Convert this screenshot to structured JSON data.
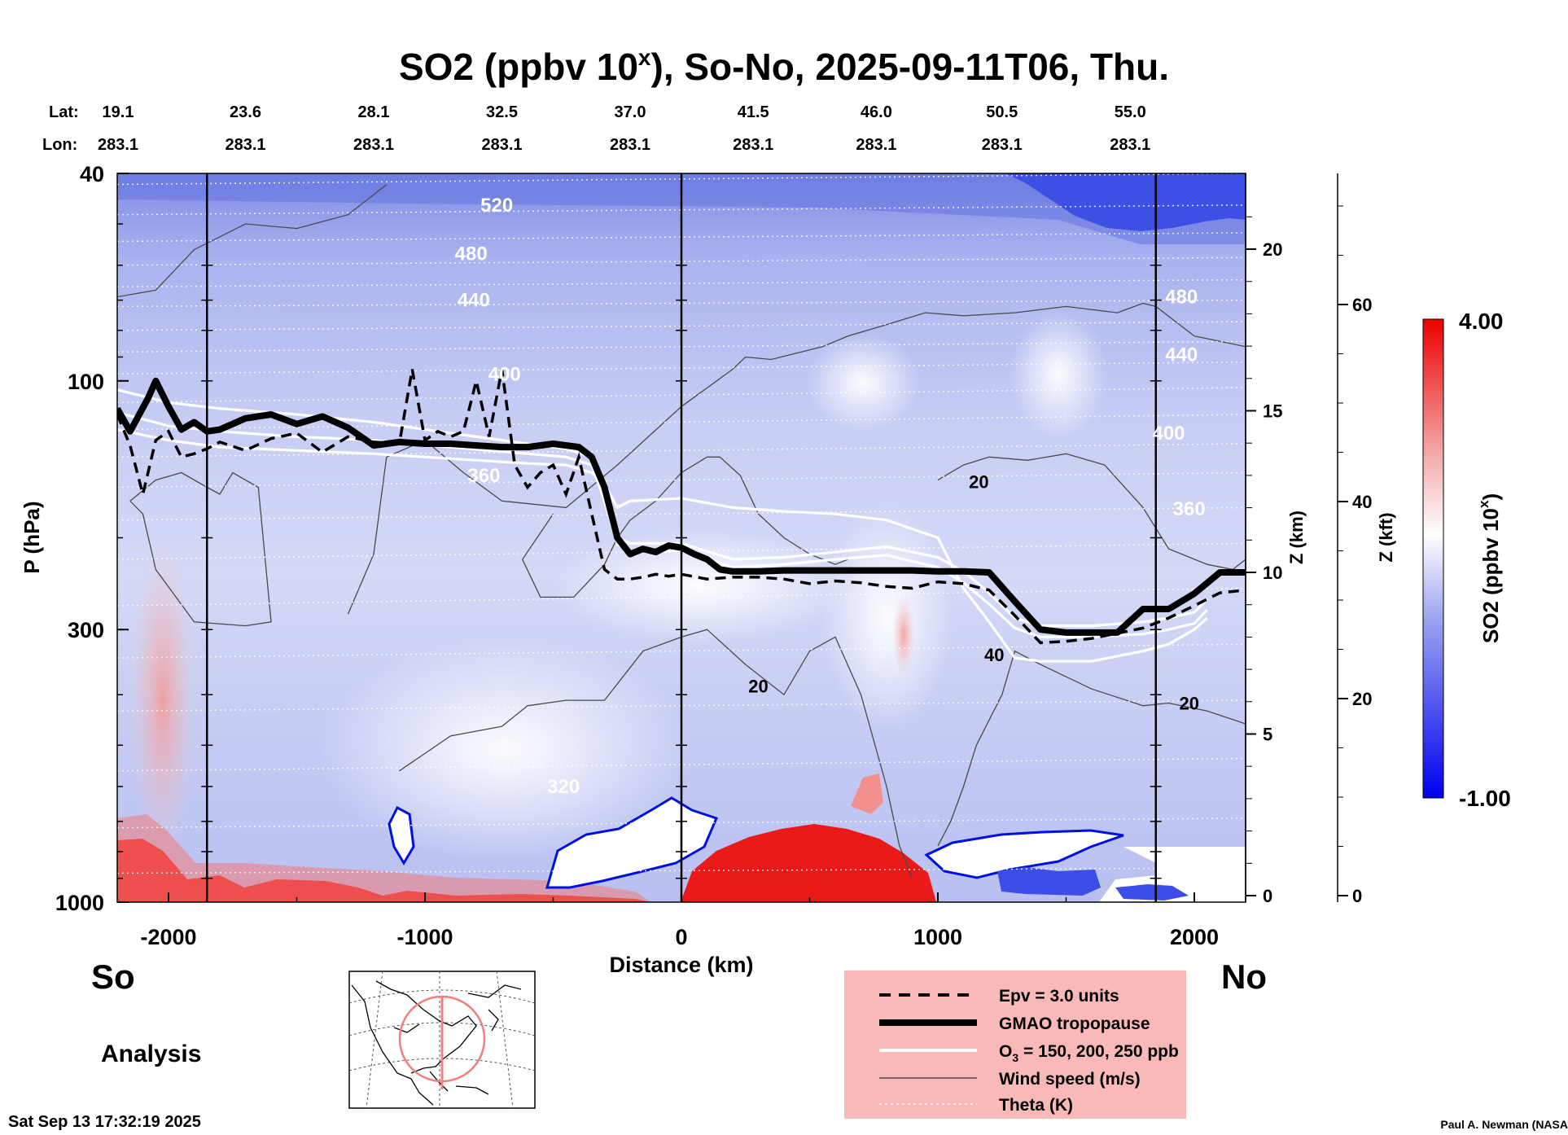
{
  "chart_data": {
    "type": "heatmap",
    "title_prefix": "SO2 (ppbv 10",
    "title_sup": "x",
    "title_suffix": "), So-No, 2025-09-11T06, Thu.",
    "xlabel": "Distance (km)",
    "ylabel": "P (hPa)",
    "z_km_label": "Z (km)",
    "z_kft_label": "Z (kft)",
    "xlim": [
      -2200,
      2200
    ],
    "ylim": [
      1000,
      40
    ],
    "x_ticks": [
      -2000,
      -1000,
      0,
      1000,
      2000
    ],
    "x_tick_labels": [
      "-2000",
      "-1000",
      "0",
      "1000",
      "2000"
    ],
    "y_ticks": [
      40,
      100,
      300,
      1000
    ],
    "y_tick_labels": [
      "40",
      "100",
      "300",
      "1000"
    ],
    "z_km_ticks": [
      0,
      5,
      10,
      15,
      20
    ],
    "z_km_tick_labels": [
      "0",
      "5",
      "10",
      "15",
      "20"
    ],
    "z_kft_ticks": [
      0,
      20,
      40,
      60
    ],
    "z_kft_tick_labels": [
      "0",
      "20",
      "40",
      "60"
    ],
    "lat_label": "Lat:",
    "lon_label": "Lon:",
    "lat_values": [
      "19.1",
      "23.6",
      "28.1",
      "32.5",
      "37.0",
      "41.5",
      "46.0",
      "50.5",
      "55.0"
    ],
    "lon_values": [
      "283.1",
      "283.1",
      "283.1",
      "283.1",
      "283.1",
      "283.1",
      "283.1",
      "283.1",
      "283.1"
    ],
    "lat_lon_distances": [
      -2200,
      -1700,
      -1200,
      -700,
      -200,
      280,
      760,
      1250,
      1750
    ],
    "vertical_lines_km": [
      -1850,
      0,
      1850
    ],
    "colorbar": {
      "label_prefix": "SO2 (ppbv 10",
      "label_sup": "x",
      "label_suffix": ")",
      "min": -1.0,
      "max": 4.0,
      "min_label": "-1.00",
      "max_label": "4.00",
      "low_color": "#0000ee",
      "mid_color": "#ffffff",
      "high_color": "#ee0000"
    },
    "theta_labels": [
      {
        "text": "520",
        "x": -720,
        "p": 46
      },
      {
        "text": "480",
        "x": -820,
        "p": 57
      },
      {
        "text": "440",
        "x": -810,
        "p": 70
      },
      {
        "text": "400",
        "x": -690,
        "p": 97
      },
      {
        "text": "360",
        "x": -770,
        "p": 152
      },
      {
        "text": "320",
        "x": -460,
        "p": 600
      },
      {
        "text": "480",
        "x": 1950,
        "p": 69
      },
      {
        "text": "440",
        "x": 1950,
        "p": 89
      },
      {
        "text": "400",
        "x": 1900,
        "p": 126
      },
      {
        "text": "360",
        "x": 1980,
        "p": 176
      }
    ],
    "wind_labels": [
      {
        "text": "20",
        "x": 1160,
        "p": 156
      },
      {
        "text": "20",
        "x": 300,
        "p": 385
      },
      {
        "text": "40",
        "x": 1220,
        "p": 335
      },
      {
        "text": "20",
        "x": 1980,
        "p": 415
      }
    ],
    "gmao_tropopause": {
      "x": [
        -2200,
        -2150,
        -2080,
        -2050,
        -2000,
        -1950,
        -1900,
        -1850,
        -1800,
        -1700,
        -1600,
        -1500,
        -1400,
        -1300,
        -1200,
        -1100,
        -1000,
        -900,
        -800,
        -700,
        -600,
        -500,
        -400,
        -350,
        -300,
        -250,
        -200,
        -150,
        -100,
        -50,
        0,
        50,
        100,
        150,
        200,
        300,
        400,
        500,
        600,
        700,
        800,
        900,
        1000,
        1100,
        1200,
        1300,
        1400,
        1500,
        1600,
        1700,
        1800,
        1900,
        2000,
        2100,
        2200
      ],
      "p": [
        113,
        125,
        108,
        100,
        112,
        124,
        120,
        125,
        124,
        118,
        116,
        121,
        117,
        123,
        133,
        131,
        132,
        132,
        133,
        134,
        134,
        132,
        134,
        140,
        160,
        200,
        215,
        210,
        213,
        207,
        209,
        215,
        220,
        230,
        232,
        232,
        231,
        231,
        231,
        231,
        231,
        231,
        232,
        232,
        233,
        265,
        300,
        304,
        304,
        304,
        274,
        274,
        256,
        233,
        233
      ]
    },
    "epv_3pvu": {
      "x": [
        -2200,
        -2150,
        -2100,
        -2050,
        -2000,
        -1950,
        -1900,
        -1850,
        -1800,
        -1700,
        -1600,
        -1500,
        -1400,
        -1300,
        -1200,
        -1100,
        -1050,
        -1000,
        -950,
        -900,
        -850,
        -800,
        -750,
        -700,
        -650,
        -600,
        -550,
        -500,
        -450,
        -400,
        -350,
        -300,
        -250,
        -200,
        -150,
        -100,
        -50,
        0,
        100,
        200,
        300,
        400,
        500,
        600,
        700,
        800,
        900,
        1000,
        1100,
        1200,
        1300,
        1400,
        1500,
        1600,
        1700,
        1800,
        1900,
        2000,
        2100,
        2200
      ],
      "p": [
        116,
        133,
        165,
        130,
        125,
        140,
        138,
        135,
        131,
        136,
        129,
        126,
        137,
        128,
        131,
        132,
        95,
        130,
        125,
        128,
        125,
        100,
        128,
        95,
        145,
        160,
        150,
        145,
        165,
        140,
        180,
        230,
        240,
        240,
        238,
        235,
        237,
        235,
        240,
        238,
        238,
        240,
        245,
        242,
        244,
        248,
        250,
        243,
        245,
        252,
        282,
        318,
        316,
        312,
        305,
        298,
        285,
        270,
        255,
        252
      ]
    },
    "o3_contours": [
      {
        "name": "150",
        "x": [
          -2200,
          -2000,
          -1800,
          -1500,
          -1200,
          -900,
          -600,
          -450,
          -350,
          -300,
          -250,
          -200,
          0,
          200,
          400,
          600,
          800,
          1000,
          1100,
          1200,
          1300,
          1400,
          1600,
          1800,
          1900,
          2000,
          2050
        ],
        "p": [
          104,
          110,
          113,
          116,
          120,
          126,
          132,
          135,
          140,
          165,
          200,
          205,
          205,
          220,
          218,
          213,
          208,
          218,
          232,
          255,
          285,
          295,
          295,
          290,
          285,
          278,
          262
        ]
      },
      {
        "name": "200",
        "x": [
          -2200,
          -2000,
          -1800,
          -1500,
          -1200,
          -900,
          -600,
          -450,
          -350,
          -300,
          -250,
          -200,
          0,
          200,
          400,
          600,
          800,
          1000,
          1100,
          1200,
          1300,
          1400,
          1600,
          1800,
          1900,
          2000,
          2050
        ],
        "p": [
          115,
          122,
          125,
          128,
          130,
          134,
          138,
          140,
          145,
          170,
          206,
          212,
          212,
          228,
          225,
          220,
          216,
          228,
          244,
          268,
          298,
          310,
          310,
          306,
          300,
          292,
          275
        ]
      },
      {
        "name": "250",
        "x": [
          -2200,
          -2000,
          -1800,
          -1500,
          -1200,
          -900,
          -600,
          -450,
          -350,
          -300,
          -250,
          -200,
          0,
          200,
          400,
          600,
          800,
          1000,
          1100,
          1200,
          1300,
          1400,
          1600,
          1800,
          1900,
          2000,
          2050
        ],
        "p": [
          124,
          130,
          134,
          136,
          138,
          141,
          144,
          145,
          150,
          158,
          175,
          170,
          168,
          175,
          178,
          180,
          185,
          200,
          250,
          290,
          340,
          345,
          345,
          330,
          320,
          300,
          285
        ]
      }
    ],
    "wind_contours": [
      {
        "name": "w1",
        "x": [
          -2200,
          -2050,
          -1900,
          -1700,
          -1500,
          -1300,
          -1150
        ],
        "p": [
          69,
          67,
          56,
          50,
          51,
          48,
          42
        ]
      },
      {
        "name": "w2",
        "x": [
          -2150,
          -2050,
          -1950,
          -1850,
          -1800,
          -1750,
          -1650,
          -1600,
          -1700,
          -1900,
          -2050,
          -2100,
          -2150
        ],
        "p": [
          170,
          155,
          150,
          160,
          165,
          150,
          160,
          290,
          295,
          290,
          230,
          180,
          170
        ]
      },
      {
        "name": "w3",
        "x": [
          -1300,
          -1200,
          -1150,
          -1000,
          -850,
          -700,
          -450,
          -250,
          0,
          200,
          250,
          350,
          550,
          650,
          800,
          950,
          1100,
          1300,
          1500,
          1700,
          1800,
          1850,
          2000,
          2200
        ],
        "p": [
          280,
          215,
          140,
          130,
          150,
          170,
          175,
          145,
          112,
          95,
          90,
          91,
          86,
          82,
          78,
          74,
          75,
          74,
          72,
          74,
          71,
          72,
          82,
          86
        ]
      },
      {
        "name": "w4",
        "x": [
          -500,
          -620,
          -550,
          -420,
          -300,
          -250,
          -200,
          -100,
          0,
          100,
          150,
          230,
          300,
          400,
          500,
          600,
          650
        ],
        "p": [
          180,
          220,
          260,
          260,
          225,
          200,
          185,
          170,
          150,
          140,
          140,
          152,
          180,
          200,
          215,
          225,
          220
        ]
      },
      {
        "name": "w5",
        "x": [
          1000,
          1050,
          1100,
          1150,
          1250,
          1300,
          1400,
          1600,
          1800,
          1900,
          2050,
          2200
        ],
        "p": [
          780,
          700,
          600,
          500,
          400,
          330,
          350,
          390,
          420,
          415,
          430,
          455
        ]
      },
      {
        "name": "w6",
        "x": [
          1000,
          1100,
          1200,
          1350,
          1500,
          1650,
          1800,
          1900,
          2050,
          2150,
          2200
        ],
        "p": [
          155,
          145,
          140,
          142,
          138,
          145,
          175,
          210,
          225,
          230,
          220
        ]
      },
      {
        "name": "w7",
        "x": [
          -1100,
          -900,
          -700,
          -600,
          -450,
          -300,
          -150,
          0,
          100,
          250,
          400,
          500,
          600,
          700,
          800,
          850,
          900
        ],
        "p": [
          560,
          480,
          460,
          420,
          410,
          410,
          330,
          310,
          300,
          350,
          400,
          330,
          310,
          400,
          600,
          780,
          900
        ]
      }
    ],
    "legend": {
      "epv": "Epv = 3.0 units",
      "gmao": "GMAO tropopause",
      "o3_prefix": "O",
      "o3_sub": "3",
      "o3_suffix": " = 150, 200, 250 ppb",
      "wind": "Wind speed (m/s)",
      "theta": "Theta (K)"
    },
    "so_label": "So",
    "no_label": "No",
    "analysis_label": "Analysis",
    "timestamp": "Sat Sep 13 17:32:19 2025",
    "credit": "Paul A. Newman (NASA"
  }
}
